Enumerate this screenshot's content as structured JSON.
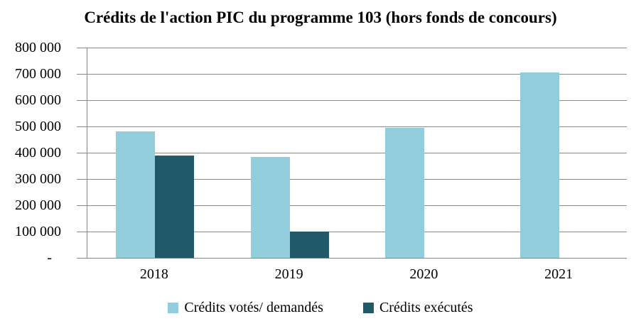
{
  "chart_data": {
    "type": "bar",
    "title": "Crédits de l'action PIC du programme 103 (hors fonds de concours)",
    "categories": [
      "2018",
      "2019",
      "2020",
      "2021"
    ],
    "series": [
      {
        "name": "Crédits votés/ demandés",
        "key": "credits-votes-demandes",
        "color": "#92CDDC",
        "values": [
          480000,
          385000,
          495000,
          705000
        ]
      },
      {
        "name": "Crédits exécutés",
        "key": "credits-executes",
        "color": "#215968",
        "values": [
          390000,
          100000,
          null,
          null
        ]
      }
    ],
    "xlabel": "",
    "ylabel": "",
    "ylim": [
      0,
      800000
    ],
    "ytick_step": 100000,
    "ytick_labels": [
      "-",
      "100 000",
      "200 000",
      "300 000",
      "400 000",
      "500 000",
      "600 000",
      "700 000",
      "800 000"
    ],
    "grid": true,
    "legend_position": "bottom"
  },
  "colors": {
    "series_votes": "#92CDDC",
    "series_executes": "#215968",
    "gridline": "#8C8C8C",
    "axis": "#868686",
    "text": "#000000",
    "background": "#FFFFFF"
  }
}
